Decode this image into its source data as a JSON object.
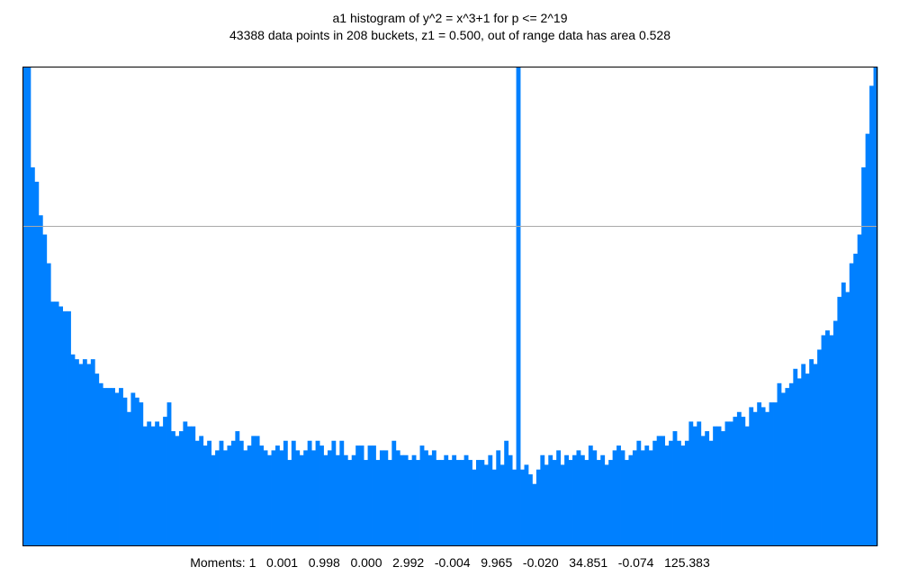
{
  "title": "a1 histogram of y^2 = x^3+1 for p <= 2^19",
  "subtitle": "43388 data points in 208 buckets, z1 = 0.500, out of range data has area 0.528",
  "moments_text": "Moments: 1   0.001   0.998   0.000   2.992   -0.004   9.965   -0.020   34.851   -0.074   125.383",
  "colors": {
    "bar": "#0080ff",
    "reference_line": "#aaaaaa",
    "frame": "#000000"
  },
  "chart_data": {
    "type": "bar",
    "title": "a1 histogram of y^2 = x^3+1 for p <= 2^19",
    "subtitle": "43388 data points in 208 buckets, z1 = 0.500, out of range data has area 0.528",
    "buckets": 208,
    "xlim": [
      -2,
      2
    ],
    "ylim": [
      0,
      1.0
    ],
    "reference_line": 0.667,
    "grid": false,
    "values": [
      1.0,
      1.0,
      0.79,
      0.76,
      0.69,
      0.65,
      0.59,
      0.51,
      0.51,
      0.5,
      0.49,
      0.49,
      0.4,
      0.39,
      0.38,
      0.39,
      0.38,
      0.39,
      0.36,
      0.34,
      0.33,
      0.33,
      0.33,
      0.32,
      0.33,
      0.31,
      0.28,
      0.32,
      0.31,
      0.3,
      0.25,
      0.26,
      0.25,
      0.26,
      0.25,
      0.27,
      0.3,
      0.24,
      0.23,
      0.24,
      0.26,
      0.25,
      0.25,
      0.22,
      0.23,
      0.21,
      0.22,
      0.19,
      0.2,
      0.22,
      0.2,
      0.21,
      0.22,
      0.24,
      0.22,
      0.2,
      0.21,
      0.23,
      0.23,
      0.21,
      0.2,
      0.19,
      0.2,
      0.21,
      0.2,
      0.22,
      0.18,
      0.22,
      0.2,
      0.19,
      0.2,
      0.22,
      0.2,
      0.22,
      0.21,
      0.19,
      0.2,
      0.22,
      0.19,
      0.22,
      0.19,
      0.18,
      0.19,
      0.21,
      0.21,
      0.18,
      0.21,
      0.21,
      0.18,
      0.2,
      0.2,
      0.18,
      0.22,
      0.2,
      0.19,
      0.19,
      0.18,
      0.19,
      0.18,
      0.21,
      0.2,
      0.19,
      0.2,
      0.18,
      0.18,
      0.19,
      0.18,
      0.19,
      0.18,
      0.18,
      0.19,
      0.18,
      0.16,
      0.18,
      0.18,
      0.17,
      0.19,
      0.16,
      0.2,
      0.17,
      0.22,
      0.19,
      0.16,
      1.0,
      0.16,
      0.17,
      0.15,
      0.13,
      0.16,
      0.19,
      0.17,
      0.19,
      0.18,
      0.2,
      0.17,
      0.19,
      0.18,
      0.19,
      0.2,
      0.19,
      0.18,
      0.21,
      0.2,
      0.18,
      0.19,
      0.17,
      0.18,
      0.2,
      0.21,
      0.2,
      0.18,
      0.19,
      0.2,
      0.22,
      0.2,
      0.21,
      0.2,
      0.22,
      0.23,
      0.23,
      0.21,
      0.22,
      0.24,
      0.22,
      0.21,
      0.22,
      0.26,
      0.25,
      0.26,
      0.23,
      0.24,
      0.22,
      0.25,
      0.25,
      0.24,
      0.26,
      0.26,
      0.27,
      0.28,
      0.27,
      0.25,
      0.29,
      0.28,
      0.3,
      0.29,
      0.28,
      0.3,
      0.3,
      0.34,
      0.32,
      0.33,
      0.34,
      0.37,
      0.35,
      0.38,
      0.36,
      0.39,
      0.38,
      0.41,
      0.44,
      0.45,
      0.44,
      0.47,
      0.52,
      0.55,
      0.53,
      0.59,
      0.61,
      0.65,
      0.79,
      0.86,
      0.96,
      1.0
    ]
  },
  "tick_labels_visible": false
}
